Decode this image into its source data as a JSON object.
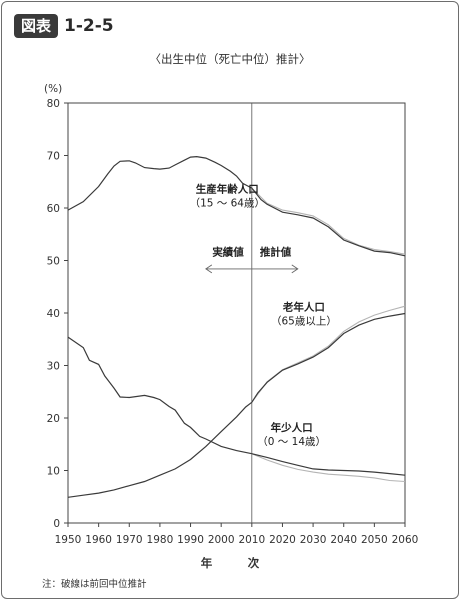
{
  "header": {
    "badge": "図表",
    "figure_number": "1-2-5"
  },
  "chart_data": {
    "type": "line",
    "title": "〈出生中位（死亡中位）推計〉",
    "unit": "(%)",
    "xlabel": "年　次",
    "ylabel": "",
    "xlim": [
      1950,
      2060
    ],
    "ylim": [
      0,
      80
    ],
    "x_ticks": [
      "1950",
      "1960",
      "1970",
      "1980",
      "1990",
      "2000",
      "2010",
      "2020",
      "2030",
      "2040",
      "2050",
      "2060"
    ],
    "y_ticks": [
      "0",
      "10",
      "20",
      "30",
      "40",
      "50",
      "60",
      "70",
      "80"
    ],
    "divider_x": 2010,
    "regions": {
      "left": "実績値",
      "right": "推計値"
    },
    "series": [
      {
        "name": "生産年齢人口",
        "name_line2": "（15 ～ 64歳）",
        "actual": [
          [
            1950,
            59.6
          ],
          [
            1955,
            61.2
          ],
          [
            1960,
            64.1
          ],
          [
            1963,
            66.5
          ],
          [
            1965,
            68.0
          ],
          [
            1967,
            68.9
          ],
          [
            1970,
            69.0
          ],
          [
            1972,
            68.6
          ],
          [
            1975,
            67.7
          ],
          [
            1978,
            67.5
          ],
          [
            1980,
            67.4
          ],
          [
            1983,
            67.6
          ],
          [
            1985,
            68.2
          ],
          [
            1988,
            69.1
          ],
          [
            1990,
            69.7
          ],
          [
            1992,
            69.8
          ],
          [
            1995,
            69.5
          ],
          [
            1998,
            68.7
          ],
          [
            2000,
            68.1
          ],
          [
            2003,
            67.0
          ],
          [
            2005,
            66.1
          ],
          [
            2007,
            64.7
          ],
          [
            2010,
            63.8
          ]
        ],
        "projected": [
          [
            2010,
            63.8
          ],
          [
            2013,
            61.6
          ],
          [
            2015,
            60.7
          ],
          [
            2020,
            59.2
          ],
          [
            2025,
            58.7
          ],
          [
            2030,
            58.1
          ],
          [
            2035,
            56.4
          ],
          [
            2040,
            53.9
          ],
          [
            2045,
            52.8
          ],
          [
            2050,
            51.8
          ],
          [
            2055,
            51.5
          ],
          [
            2060,
            50.9
          ]
        ],
        "previous": [
          [
            2010,
            63.8
          ],
          [
            2015,
            60.9
          ],
          [
            2020,
            59.6
          ],
          [
            2025,
            59.1
          ],
          [
            2030,
            58.5
          ],
          [
            2035,
            56.8
          ],
          [
            2040,
            54.2
          ],
          [
            2045,
            52.9
          ],
          [
            2050,
            52.1
          ],
          [
            2055,
            51.7
          ],
          [
            2060,
            51.2
          ]
        ]
      },
      {
        "name": "老年人口",
        "name_line2": "（65歳以上）",
        "actual": [
          [
            1950,
            4.9
          ],
          [
            1955,
            5.3
          ],
          [
            1960,
            5.7
          ],
          [
            1965,
            6.3
          ],
          [
            1970,
            7.1
          ],
          [
            1975,
            7.9
          ],
          [
            1980,
            9.1
          ],
          [
            1985,
            10.3
          ],
          [
            1990,
            12.1
          ],
          [
            1995,
            14.6
          ],
          [
            2000,
            17.4
          ],
          [
            2005,
            20.2
          ],
          [
            2008,
            22.1
          ],
          [
            2010,
            23.0
          ]
        ],
        "projected": [
          [
            2010,
            23.0
          ],
          [
            2012,
            24.8
          ],
          [
            2015,
            26.8
          ],
          [
            2020,
            29.1
          ],
          [
            2025,
            30.3
          ],
          [
            2030,
            31.6
          ],
          [
            2035,
            33.4
          ],
          [
            2040,
            36.1
          ],
          [
            2045,
            37.7
          ],
          [
            2050,
            38.8
          ],
          [
            2055,
            39.4
          ],
          [
            2060,
            39.9
          ]
        ],
        "previous": [
          [
            2010,
            23.0
          ],
          [
            2015,
            26.9
          ],
          [
            2020,
            29.2
          ],
          [
            2025,
            30.5
          ],
          [
            2030,
            31.8
          ],
          [
            2035,
            33.7
          ],
          [
            2040,
            36.5
          ],
          [
            2045,
            38.3
          ],
          [
            2050,
            39.6
          ],
          [
            2055,
            40.5
          ],
          [
            2060,
            41.3
          ]
        ]
      },
      {
        "name": "年少人口",
        "name_line2": "（0 ～ 14歳）",
        "actual": [
          [
            1950,
            35.4
          ],
          [
            1955,
            33.4
          ],
          [
            1957,
            31.0
          ],
          [
            1960,
            30.2
          ],
          [
            1962,
            28.0
          ],
          [
            1965,
            25.7
          ],
          [
            1967,
            24.0
          ],
          [
            1970,
            23.9
          ],
          [
            1975,
            24.3
          ],
          [
            1978,
            23.9
          ],
          [
            1980,
            23.5
          ],
          [
            1983,
            22.2
          ],
          [
            1985,
            21.5
          ],
          [
            1988,
            19.0
          ],
          [
            1990,
            18.2
          ],
          [
            1993,
            16.5
          ],
          [
            1995,
            16.0
          ],
          [
            2000,
            14.6
          ],
          [
            2005,
            13.8
          ],
          [
            2010,
            13.2
          ]
        ],
        "projected": [
          [
            2010,
            13.2
          ],
          [
            2015,
            12.5
          ],
          [
            2020,
            11.7
          ],
          [
            2025,
            11.0
          ],
          [
            2030,
            10.3
          ],
          [
            2035,
            10.1
          ],
          [
            2040,
            10.0
          ],
          [
            2045,
            9.9
          ],
          [
            2050,
            9.7
          ],
          [
            2055,
            9.4
          ],
          [
            2060,
            9.1
          ]
        ],
        "previous": [
          [
            2010,
            13.2
          ],
          [
            2015,
            12.0
          ],
          [
            2020,
            11.0
          ],
          [
            2025,
            10.2
          ],
          [
            2030,
            9.7
          ],
          [
            2035,
            9.3
          ],
          [
            2040,
            9.1
          ],
          [
            2045,
            8.9
          ],
          [
            2050,
            8.6
          ],
          [
            2055,
            8.1
          ],
          [
            2060,
            7.9
          ]
        ]
      }
    ],
    "note": "注：破線は前回中位推計"
  }
}
